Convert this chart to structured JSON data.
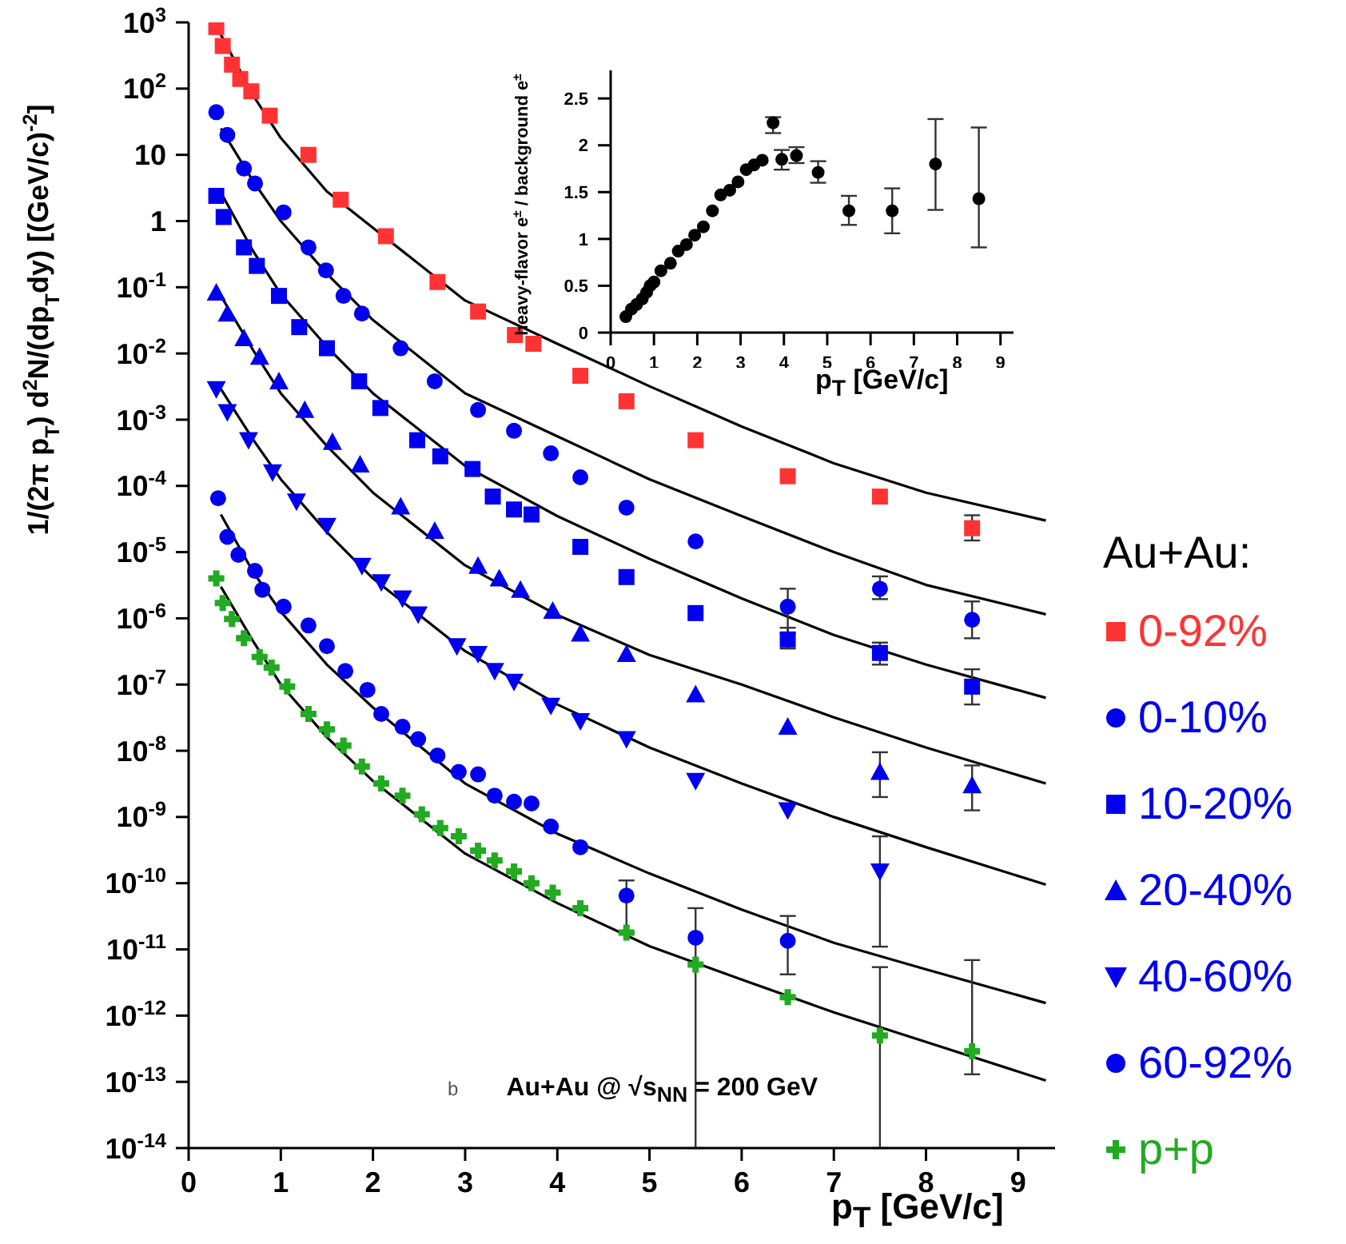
{
  "chart_data": [
    {
      "type": "scatter",
      "xlabel": "p$_{T}$ [GeV/c]",
      "ylabel": "1/(2π p$_{T}$) d$^{2}$N/(dp$_{T}$dy) [(GeV/c)$^{-2}$]",
      "legend_title": "Au+Au:",
      "legend": "right",
      "log": true,
      "xlim": [
        0,
        9.4
      ],
      "xticks": [
        0,
        1,
        2,
        3,
        4,
        5,
        6,
        7,
        8,
        9
      ],
      "ylim": [
        1e-14,
        1000
      ],
      "yticks": [
        {
          "value": 1e-14,
          "label": "10$^{-14}$"
        },
        {
          "value": 1e-13,
          "label": "10$^{-13}$"
        },
        {
          "value": 1e-12,
          "label": "10$^{-12}$"
        },
        {
          "value": 1e-11,
          "label": "10$^{-11}$"
        },
        {
          "value": 1e-10,
          "label": "10$^{-10}$"
        },
        {
          "value": 1e-09,
          "label": "10$^{-9}$"
        },
        {
          "value": 1e-08,
          "label": "10$^{-8}$"
        },
        {
          "value": 1e-07,
          "label": "10$^{-7}$"
        },
        {
          "value": 1e-06,
          "label": "10$^{-6}$"
        },
        {
          "value": 1e-05,
          "label": "10$^{-5}$"
        },
        {
          "value": 0.0001,
          "label": "10$^{-4}$"
        },
        {
          "value": 0.001,
          "label": "10$^{-3}$"
        },
        {
          "value": 0.01,
          "label": "10$^{-2}$"
        },
        {
          "value": 0.1,
          "label": "10$^{-1}$"
        },
        1,
        10,
        {
          "value": 100,
          "label": "10$^{2}$"
        },
        {
          "value": 1000,
          "label": "10$^{3}$"
        }
      ],
      "annotations": [
        "b",
        "Au+Au @ √s$_{NN}$ = 200 GeV"
      ],
      "series": [
        {
          "type": "line",
          "marker": "none",
          "color": "#000000",
          "x": [
            0.35,
            0.7,
            1,
            1.5,
            2,
            3,
            4,
            5,
            6,
            7,
            8,
            9.3
          ],
          "values": [
            650,
            79,
            18,
            2.8,
            0.79,
            0.063,
            0.014,
            0.0032,
            0.00079,
            0.00022,
            7.9e-05,
            3e-05
          ]
        },
        {
          "type": "line",
          "marker": "none",
          "color": "#000000",
          "x": [
            0.35,
            0.7,
            1,
            1.5,
            2,
            3,
            4,
            5,
            6,
            7,
            8,
            9.3
          ],
          "values": [
            25,
            4.0,
            1.0,
            0.16,
            0.032,
            0.0025,
            0.00056,
            0.000126,
            3.5e-05,
            1e-05,
            3.2e-06,
            1.15e-06
          ]
        },
        {
          "type": "line",
          "marker": "none",
          "color": "#000000",
          "x": [
            0.35,
            0.7,
            1,
            1.5,
            2,
            3,
            4,
            5,
            6,
            7,
            8,
            9.3
          ],
          "values": [
            2.7,
            0.35,
            0.079,
            0.0126,
            0.0025,
            0.0002,
            3.5e-05,
            7.9e-06,
            2e-06,
            5.6e-07,
            2e-07,
            6.3e-08
          ]
        },
        {
          "type": "line",
          "marker": "none",
          "color": "#000000",
          "x": [
            0.35,
            0.7,
            1,
            1.5,
            2,
            3,
            4,
            5,
            6,
            7,
            8,
            9.3
          ],
          "values": [
            0.074,
            0.0112,
            0.0025,
            0.0004,
            7.9e-05,
            6.3e-06,
            1.12e-06,
            2.8e-07,
            1e-07,
            3.2e-08,
            1.12e-08,
            3.2e-09
          ]
        },
        {
          "type": "line",
          "marker": "none",
          "color": "#000000",
          "x": [
            0.35,
            0.7,
            1,
            1.5,
            2,
            3,
            4,
            5,
            6,
            7,
            8,
            9.3
          ],
          "values": [
            0.0029,
            0.0005,
            0.000126,
            2e-05,
            4e-06,
            3.2e-07,
            5e-08,
            1.12e-08,
            3.2e-09,
            1e-09,
            3.5e-10,
            9.5e-11
          ]
        },
        {
          "type": "line",
          "marker": "none",
          "color": "#000000",
          "x": [
            0.35,
            0.7,
            1,
            1.5,
            2,
            3,
            4,
            5,
            6,
            7,
            8,
            9.3
          ],
          "values": [
            3.7e-05,
            5e-06,
            1.26e-06,
            2e-07,
            4.5e-08,
            3.2e-09,
            5.6e-10,
            1.4e-10,
            4e-11,
            1.26e-11,
            5e-12,
            1.55e-12
          ]
        },
        {
          "type": "line",
          "marker": "none",
          "color": "#000000",
          "x": [
            0.35,
            0.7,
            1,
            1.5,
            2,
            3,
            4,
            5,
            6,
            7,
            8,
            9.3
          ],
          "values": [
            3e-06,
            4.5e-07,
            1e-07,
            1.6e-08,
            3.5e-09,
            2.8e-10,
            5e-11,
            1.12e-11,
            3.5e-12,
            1.12e-12,
            4e-13,
            1.05e-13
          ]
        },
        {
          "name": "0-92%",
          "color": "#ff3333",
          "marker": "square",
          "x": [
            0.3,
            0.37,
            0.47,
            0.56,
            0.68,
            0.88,
            1.3,
            1.65,
            2.14,
            2.7,
            3.14,
            3.54,
            3.74,
            4.25,
            4.75,
            5.5,
            6.5,
            7.5,
            8.5
          ],
          "values": [
            850,
            440,
            230,
            140,
            91,
            39,
            10,
            2.1,
            0.59,
            0.12,
            0.043,
            0.019,
            0.014,
            0.0046,
            0.0019,
            0.00049,
            0.00014,
            6.9e-05,
            2.3e-05
          ],
          "errors": [
            null,
            null,
            null,
            null,
            null,
            null,
            null,
            null,
            null,
            null,
            null,
            null,
            null,
            null,
            null,
            null,
            null,
            null,
            [
              1.5e-05,
              3.6e-05
            ]
          ]
        },
        {
          "name": "0-10%",
          "color": "#0000ee",
          "marker": "circle",
          "x": [
            0.3,
            0.42,
            0.6,
            0.72,
            1.03,
            1.3,
            1.49,
            1.68,
            1.88,
            2.3,
            2.67,
            3.14,
            3.53,
            3.93,
            4.25,
            4.75,
            5.5,
            6.5,
            7.5,
            8.5
          ],
          "values": [
            44,
            20,
            6.2,
            3.7,
            1.35,
            0.4,
            0.18,
            0.074,
            0.04,
            0.012,
            0.0038,
            0.0014,
            0.00068,
            0.00031,
            0.000135,
            4.7e-05,
            1.45e-05,
            1.5e-06,
            2.8e-06,
            9.5e-07
          ],
          "errors": [
            null,
            null,
            null,
            null,
            null,
            null,
            null,
            null,
            null,
            null,
            null,
            null,
            null,
            null,
            null,
            null,
            null,
            [
              6e-07,
              2.8e-06
            ],
            [
              1.95e-06,
              4.3e-06
            ],
            [
              5e-07,
              1.8e-06
            ]
          ]
        },
        {
          "name": "10-20%",
          "color": "#0000ee",
          "marker": "square",
          "x": [
            0.3,
            0.38,
            0.6,
            0.74,
            0.98,
            1.2,
            1.5,
            1.85,
            2.08,
            2.48,
            2.73,
            3.08,
            3.3,
            3.53,
            3.72,
            4.25,
            4.75,
            5.5,
            6.5,
            7.5,
            8.5
          ],
          "values": [
            2.4,
            1.15,
            0.4,
            0.21,
            0.074,
            0.025,
            0.012,
            0.0038,
            0.0015,
            0.00049,
            0.00028,
            0.00018,
            6.9e-05,
            4.4e-05,
            3.7e-05,
            1.2e-05,
            4.2e-06,
            1.2e-06,
            4.8e-07,
            3e-07,
            9.3e-08
          ],
          "errors": [
            null,
            null,
            null,
            null,
            null,
            null,
            null,
            null,
            null,
            null,
            null,
            null,
            null,
            null,
            null,
            null,
            null,
            null,
            [
              3.5e-07,
              7.2e-07
            ],
            [
              2e-07,
              4.3e-07
            ],
            [
              5e-08,
              1.7e-07
            ]
          ]
        },
        {
          "name": "20-40%",
          "color": "#0000ee",
          "marker": "triangle",
          "x": [
            0.3,
            0.42,
            0.6,
            0.77,
            0.98,
            1.26,
            1.56,
            1.86,
            2.3,
            2.67,
            3.14,
            3.37,
            3.6,
            3.95,
            4.25,
            4.75,
            5.5,
            6.5,
            7.5,
            8.5
          ],
          "values": [
            0.083,
            0.04,
            0.017,
            0.0089,
            0.0038,
            0.0014,
            0.00046,
            0.00021,
            4.9e-05,
            2.1e-05,
            6.2e-06,
            4e-06,
            2.7e-06,
            1.3e-06,
            5.9e-07,
            2.9e-07,
            7.1e-08,
            2.3e-08,
            4.8e-09,
            3e-09
          ],
          "errors": [
            null,
            null,
            null,
            null,
            null,
            null,
            null,
            null,
            null,
            null,
            null,
            null,
            null,
            null,
            null,
            null,
            null,
            null,
            [
              2e-09,
              9.5e-09
            ],
            [
              1.26e-09,
              6e-09
            ]
          ]
        },
        {
          "name": "40-60%",
          "color": "#0000ee",
          "marker": "triangle-down",
          "x": [
            0.3,
            0.42,
            0.65,
            0.91,
            1.17,
            1.5,
            1.88,
            2.09,
            2.32,
            2.49,
            2.91,
            3.14,
            3.32,
            3.53,
            3.93,
            4.25,
            4.75,
            5.5,
            6.5,
            7.5
          ],
          "values": [
            0.0029,
            0.0013,
            0.00049,
            0.00016,
            5.8e-05,
            2.5e-05,
            6.2e-06,
            3.5e-06,
            2e-06,
            1.15e-06,
            3.8e-07,
            2.9e-07,
            1.6e-07,
            1.1e-07,
            4.8e-08,
            2.8e-08,
            1.5e-08,
            3.5e-09,
            1.26e-09,
            1.5e-10
          ],
          "errors": [
            null,
            null,
            null,
            null,
            null,
            null,
            null,
            null,
            null,
            null,
            null,
            null,
            null,
            null,
            null,
            null,
            null,
            null,
            null,
            [
              1.1e-11,
              5.1e-10
            ]
          ]
        },
        {
          "name": "60-92%",
          "color": "#0000ee",
          "marker": "circle",
          "x": [
            0.32,
            0.42,
            0.54,
            0.72,
            0.8,
            1.03,
            1.3,
            1.5,
            1.7,
            1.94,
            2.09,
            2.32,
            2.49,
            2.7,
            2.93,
            3.14,
            3.32,
            3.53,
            3.72,
            3.93,
            4.25,
            4.75,
            5.5,
            6.5
          ],
          "values": [
            6.5e-05,
            1.7e-05,
            9.1e-06,
            5.2e-06,
            2.7e-06,
            1.5e-06,
            7.8e-07,
            3.8e-07,
            1.6e-07,
            8.3e-08,
            3.6e-08,
            2.3e-08,
            1.5e-08,
            8.5e-09,
            4.8e-09,
            4.4e-09,
            2.1e-09,
            1.7e-09,
            1.6e-09,
            7.2e-10,
            3.5e-10,
            6.5e-11,
            1.5e-11,
            1.35e-11
          ],
          "errors": [
            null,
            null,
            null,
            null,
            null,
            null,
            null,
            null,
            null,
            null,
            null,
            null,
            null,
            null,
            null,
            null,
            null,
            null,
            null,
            null,
            null,
            [
              1.8e-11,
              1.1e-10
            ],
            [
              1e-14,
              4.2e-11
            ],
            [
              4.2e-12,
              3.2e-11
            ]
          ]
        },
        {
          "name": "p+p",
          "color": "#22aa22",
          "marker": "cross",
          "x": [
            0.3,
            0.37,
            0.47,
            0.6,
            0.77,
            0.9,
            1.07,
            1.3,
            1.5,
            1.68,
            1.88,
            2.09,
            2.32,
            2.53,
            2.73,
            2.93,
            3.14,
            3.32,
            3.53,
            3.72,
            3.95,
            4.25,
            4.75,
            5.5,
            6.5,
            7.5,
            8.5
          ],
          "values": [
            4e-06,
            1.7e-06,
            9.8e-07,
            5e-07,
            2.6e-07,
            1.8e-07,
            9.3e-08,
            3.6e-08,
            2.1e-08,
            1.2e-08,
            5.8e-09,
            3.2e-09,
            2.1e-09,
            1.1e-09,
            6.8e-10,
            5.1e-10,
            3.1e-10,
            2.2e-10,
            1.5e-10,
            1e-10,
            7.2e-11,
            4.2e-11,
            1.8e-11,
            5.9e-12,
            1.9e-12,
            5e-13,
            2.9e-13
          ],
          "errors": [
            null,
            null,
            null,
            null,
            null,
            null,
            null,
            null,
            null,
            null,
            null,
            null,
            null,
            null,
            null,
            null,
            null,
            null,
            null,
            null,
            null,
            null,
            null,
            null,
            null,
            [
              1e-14,
              5.4e-12
            ],
            [
              1.3e-13,
              6.9e-12
            ]
          ]
        }
      ]
    },
    {
      "type": "scatter",
      "xlabel": "p$_{T}$ [GeV/c]",
      "ylabel": "heavy-flavor e$^{±}$ / background e$^{±}$",
      "marker": "circle",
      "xlim": [
        0,
        9.3
      ],
      "xticks": [
        0,
        1,
        2,
        3,
        4,
        5,
        6,
        7,
        8,
        9
      ],
      "ylim": [
        0,
        2.8
      ],
      "yticks": [
        0,
        0.5,
        1,
        1.5,
        2,
        2.5
      ],
      "series": [
        {
          "color": "#000000",
          "x": [
            0.35,
            0.48,
            0.6,
            0.73,
            0.83,
            0.91,
            1.0,
            1.16,
            1.38,
            1.56,
            1.75,
            1.94,
            2.14,
            2.35,
            2.54,
            2.75,
            2.94,
            3.13,
            3.31,
            3.5,
            3.75,
            3.95,
            4.29,
            4.79,
            5.5,
            6.5,
            7.5,
            8.5
          ],
          "values": [
            0.17,
            0.25,
            0.3,
            0.36,
            0.43,
            0.5,
            0.54,
            0.66,
            0.74,
            0.87,
            0.94,
            1.04,
            1.13,
            1.3,
            1.47,
            1.52,
            1.61,
            1.74,
            1.79,
            1.84,
            2.24,
            1.85,
            1.89,
            1.71,
            1.3,
            1.3,
            1.8,
            1.43
          ],
          "errors": [
            null,
            null,
            null,
            null,
            null,
            null,
            null,
            null,
            null,
            null,
            null,
            null,
            null,
            null,
            null,
            null,
            null,
            null,
            null,
            null,
            [
              2.13,
              2.3
            ],
            [
              1.74,
              1.95
            ],
            [
              1.81,
              1.98
            ],
            [
              1.6,
              1.83
            ],
            [
              1.15,
              1.46
            ],
            [
              1.06,
              1.54
            ],
            [
              1.31,
              2.28
            ],
            [
              0.91,
              2.19
            ]
          ]
        }
      ]
    }
  ]
}
